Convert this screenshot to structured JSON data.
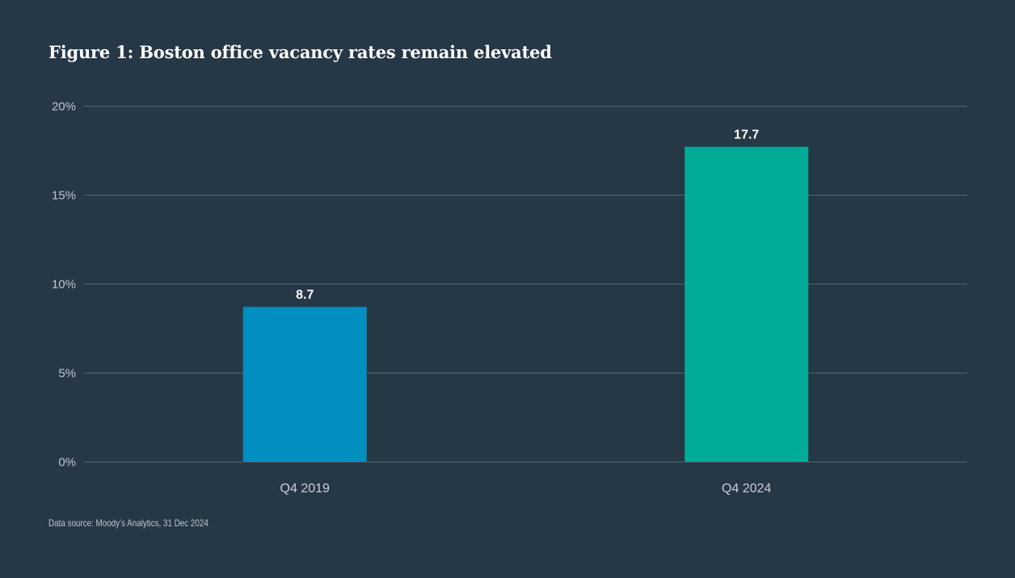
{
  "title": "Figure 1: Boston office vacancy rates remain elevated",
  "source": "Data source: Moody’s Analytics, 31 Dec 2024",
  "colors": {
    "background": "#263746",
    "gridline": "#55646f",
    "bars": [
      "#008fc0",
      "#00ab98"
    ]
  },
  "chart_data": {
    "type": "bar",
    "title": "Figure 1: Boston office vacancy rates remain elevated",
    "xlabel": "",
    "ylabel": "",
    "categories": [
      "Q4 2019",
      "Q4 2024"
    ],
    "values": [
      8.7,
      17.7
    ],
    "data_labels": [
      "8.7",
      "17.7"
    ],
    "ylim": [
      0,
      20
    ],
    "yticks": [
      0,
      5,
      10,
      15,
      20
    ],
    "ytick_labels": [
      "0%",
      "5%",
      "10%",
      "15%",
      "20%"
    ],
    "grid": true,
    "legend": false
  }
}
